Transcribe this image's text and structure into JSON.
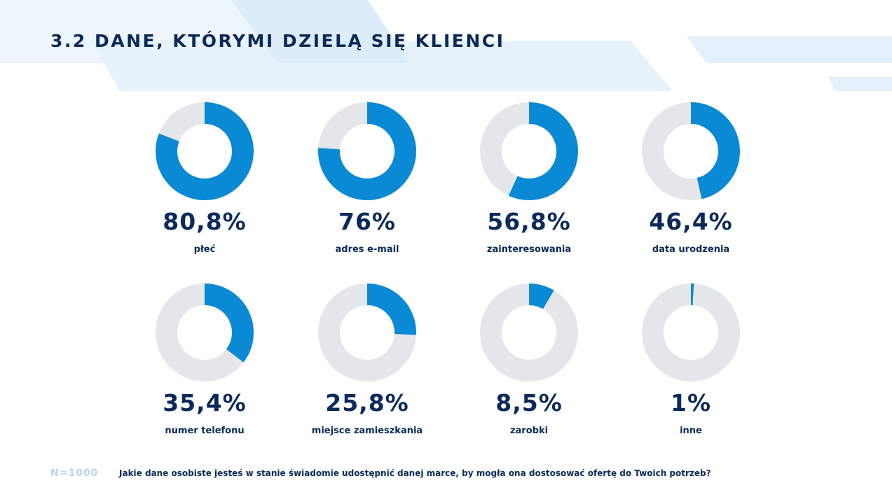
{
  "header": {
    "title": "3.2 DANE, KTÓRYMI DZIELĄ SIĘ KLIENCI"
  },
  "colors": {
    "primary": "#0a89d4",
    "track": "#e4e6e9",
    "text": "#0b2a5b",
    "n_label": "#b9d5ee"
  },
  "chart_data": {
    "type": "pie",
    "variant": "donut",
    "items": [
      {
        "label": "płeć",
        "value": 80.8,
        "display": "80,8%"
      },
      {
        "label": "adres e-mail",
        "value": 76,
        "display": "76%"
      },
      {
        "label": "zainteresowania",
        "value": 56.8,
        "display": "56,8%"
      },
      {
        "label": "data urodzenia",
        "value": 46.4,
        "display": "46,4%"
      },
      {
        "label": "numer telefonu",
        "value": 35.4,
        "display": "35,4%"
      },
      {
        "label": "miejsce zamieszkania",
        "value": 25.8,
        "display": "25,8%"
      },
      {
        "label": "zarobki",
        "value": 8.5,
        "display": "8,5%"
      },
      {
        "label": "inne",
        "value": 1,
        "display": "1%"
      }
    ]
  },
  "footer": {
    "sample": "N=1000",
    "question": "Jakie dane osobiste jesteś w stanie świadomie udostępnić danej marce, by mogła ona dostosować ofertę do Twoich potrzeb?"
  }
}
